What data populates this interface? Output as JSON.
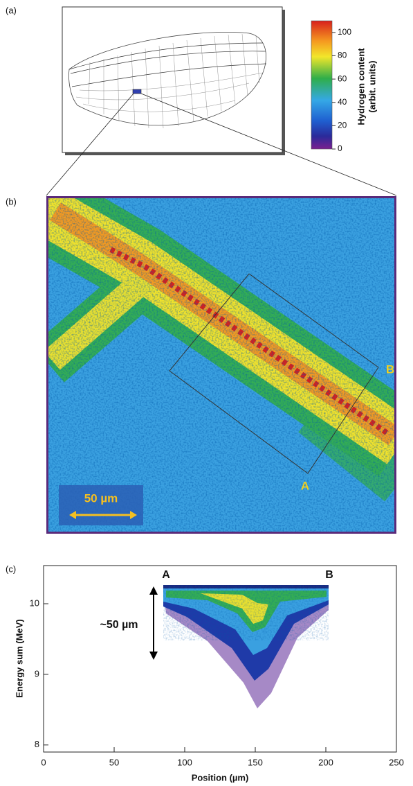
{
  "panels": {
    "a": "(a)",
    "b": "(b)",
    "c": "(c)"
  },
  "colorbar": {
    "label_line1": "Hydrogen content",
    "label_line2": "(arbit. units)",
    "clim": [
      0,
      110
    ],
    "ticks": [
      0,
      20,
      40,
      60,
      80,
      100
    ]
  },
  "map": {
    "scale_bar": "50 µm",
    "corner_a": "A",
    "corner_b": "B"
  },
  "chart_data": {
    "type": "scatter",
    "xlabel": "Position (µm)",
    "ylabel": "Energy sum (MeV)",
    "xlim": [
      0,
      250
    ],
    "xticks": [
      0,
      50,
      100,
      150,
      200,
      250
    ],
    "ylim": [
      7.9,
      10.54
    ],
    "yticks": [
      8,
      9,
      10
    ],
    "annotations": [
      "A",
      "B",
      "~50 µm"
    ]
  }
}
